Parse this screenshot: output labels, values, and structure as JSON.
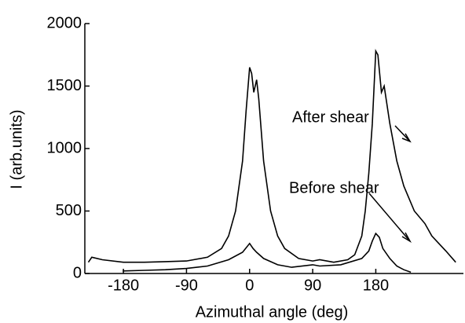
{
  "chart_data": {
    "type": "line",
    "x_label": "Azimuthal angle (deg)",
    "y_label": "I (arb.units)",
    "xlim": [
      -235,
      305
    ],
    "ylim": [
      0,
      2000
    ],
    "xticks": [
      -180,
      -90,
      0,
      90,
      180
    ],
    "yticks": [
      0,
      500,
      1000,
      1500,
      2000
    ],
    "series": [
      {
        "name": "After shear",
        "color": "#000000",
        "x": [
          -230,
          -225,
          -210,
          -180,
          -150,
          -120,
          -90,
          -60,
          -40,
          -30,
          -20,
          -10,
          -5,
          0,
          3,
          6,
          10,
          13,
          20,
          30,
          40,
          50,
          70,
          90,
          100,
          120,
          140,
          150,
          160,
          165,
          170,
          175,
          180,
          183,
          188,
          192,
          200,
          210,
          220,
          235,
          250,
          260,
          280,
          294
        ],
        "values": [
          90,
          130,
          110,
          90,
          90,
          95,
          100,
          130,
          200,
          300,
          500,
          900,
          1300,
          1650,
          1600,
          1450,
          1550,
          1400,
          900,
          500,
          300,
          200,
          120,
          100,
          110,
          90,
          110,
          150,
          300,
          500,
          800,
          1200,
          1780,
          1750,
          1450,
          1500,
          1200,
          900,
          700,
          500,
          400,
          300,
          180,
          90
        ]
      },
      {
        "name": "Before shear",
        "color": "#000000",
        "x": [
          -181,
          -150,
          -120,
          -90,
          -60,
          -30,
          -10,
          0,
          5,
          10,
          20,
          40,
          60,
          90,
          100,
          130,
          160,
          170,
          175,
          180,
          185,
          190,
          200,
          210,
          220,
          230
        ],
        "values": [
          20,
          25,
          30,
          40,
          60,
          110,
          170,
          240,
          200,
          170,
          120,
          70,
          50,
          70,
          60,
          70,
          120,
          180,
          260,
          320,
          290,
          200,
          120,
          60,
          30,
          10
        ]
      }
    ]
  }
}
